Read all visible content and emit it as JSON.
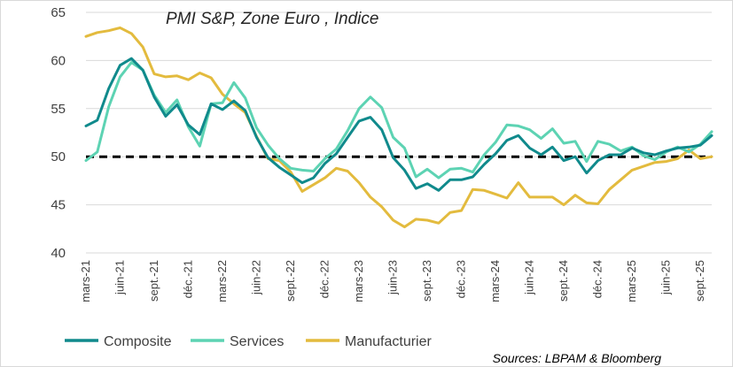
{
  "chart_data": {
    "type": "line",
    "title": "PMI S&P, Zone Euro , Indice",
    "source": "Sources: LBPAM & Bloomberg",
    "xlabel": "",
    "ylabel": "",
    "ylim": [
      40,
      65
    ],
    "yticks": [
      "40",
      "45",
      "50",
      "55",
      "60",
      "65"
    ],
    "reference_line": 50,
    "x": [
      "mars-21",
      "avr-21",
      "mai-21",
      "juin-21",
      "juil-21",
      "août-21",
      "sept-21",
      "oct-21",
      "nov-21",
      "déc-21",
      "janv-22",
      "févr-22",
      "mars-22",
      "avr-22",
      "mai-22",
      "juin-22",
      "juil-22",
      "août-22",
      "sept-22",
      "oct-22",
      "nov-22",
      "déc-22",
      "janv-23",
      "févr-23",
      "mars-23",
      "avr-23",
      "mai-23",
      "juin-23",
      "juil-23",
      "août-23",
      "sept-23",
      "oct-23",
      "nov-23",
      "déc-23",
      "janv-24",
      "févr-24",
      "mars-24",
      "avr-24",
      "mai-24",
      "juin-24",
      "juil-24",
      "août-24",
      "sept-24",
      "oct-24",
      "nov-24",
      "déc-24",
      "janv-25",
      "févr-25",
      "mars-25",
      "avr-25",
      "mai-25",
      "juin-25",
      "juil-25",
      "août-25",
      "sept-25",
      "oct-25"
    ],
    "x_tick_labels": [
      "mars-21",
      "juin-21",
      "sept.-21",
      "déc.-21",
      "mars-22",
      "juin-22",
      "sept.-22",
      "déc.-22",
      "mars-23",
      "juin-23",
      "sept.-23",
      "déc.-23",
      "mars-24",
      "juin-24",
      "sept.-24",
      "déc.-24",
      "mars-25",
      "juin-25",
      "sept.-25"
    ],
    "series": [
      {
        "name": "Composite",
        "color": "#108a8c",
        "values": [
          53.2,
          53.8,
          57.1,
          59.5,
          60.2,
          59.0,
          56.2,
          54.2,
          55.4,
          53.3,
          52.3,
          55.5,
          54.9,
          55.8,
          54.8,
          52.0,
          49.9,
          48.9,
          48.1,
          47.3,
          47.8,
          49.3,
          50.3,
          52.0,
          53.7,
          54.1,
          52.8,
          49.9,
          48.6,
          46.7,
          47.2,
          46.5,
          47.6,
          47.6,
          47.9,
          49.2,
          50.3,
          51.7,
          52.2,
          50.9,
          50.2,
          51.0,
          49.6,
          50.0,
          48.3,
          49.6,
          50.2,
          50.2,
          50.9,
          50.4,
          50.2,
          50.6,
          50.9,
          51.0,
          51.2,
          52.2
        ]
      },
      {
        "name": "Services",
        "color": "#5dd3b3",
        "values": [
          49.6,
          50.5,
          55.2,
          58.3,
          59.8,
          59.0,
          56.4,
          54.6,
          55.9,
          53.1,
          51.1,
          55.5,
          55.6,
          57.7,
          56.1,
          53.0,
          51.2,
          49.8,
          48.8,
          48.6,
          48.5,
          49.8,
          50.8,
          52.7,
          55.0,
          56.2,
          55.1,
          52.0,
          50.9,
          47.9,
          48.7,
          47.8,
          48.7,
          48.8,
          48.4,
          50.2,
          51.5,
          53.3,
          53.2,
          52.8,
          51.9,
          52.9,
          51.4,
          51.6,
          49.5,
          51.6,
          51.3,
          50.6,
          51.0,
          50.1,
          49.7,
          50.5,
          51.0,
          50.5,
          51.3,
          52.6
        ]
      },
      {
        "name": "Manufacturier",
        "color": "#e3bb3e",
        "values": [
          62.5,
          62.9,
          63.1,
          63.4,
          62.8,
          61.4,
          58.6,
          58.3,
          58.4,
          58.0,
          58.7,
          58.2,
          56.5,
          55.5,
          54.6,
          52.1,
          49.8,
          49.6,
          48.4,
          46.4,
          47.1,
          47.8,
          48.8,
          48.5,
          47.3,
          45.8,
          44.8,
          43.4,
          42.7,
          43.5,
          43.4,
          43.1,
          44.2,
          44.4,
          46.6,
          46.5,
          46.1,
          45.7,
          47.3,
          45.8,
          45.8,
          45.8,
          45.0,
          46.0,
          45.2,
          45.1,
          46.6,
          47.6,
          48.6,
          49.0,
          49.4,
          49.5,
          49.8,
          50.7,
          49.8,
          50.0
        ]
      }
    ],
    "legend_position": "bottom-left"
  }
}
